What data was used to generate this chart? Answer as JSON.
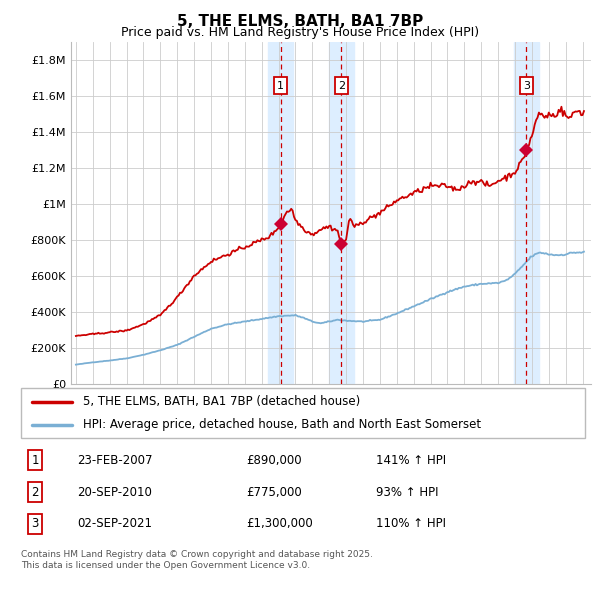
{
  "title": "5, THE ELMS, BATH, BA1 7BP",
  "subtitle": "Price paid vs. HM Land Registry's House Price Index (HPI)",
  "legend_line1": "5, THE ELMS, BATH, BA1 7BP (detached house)",
  "legend_line2": "HPI: Average price, detached house, Bath and North East Somerset",
  "footer1": "Contains HM Land Registry data © Crown copyright and database right 2025.",
  "footer2": "This data is licensed under the Open Government Licence v3.0.",
  "sales": [
    {
      "num": 1,
      "date": "23-FEB-2007",
      "price": "£890,000",
      "pct": "141% ↑ HPI"
    },
    {
      "num": 2,
      "date": "20-SEP-2010",
      "price": "£775,000",
      "pct": "93% ↑ HPI"
    },
    {
      "num": 3,
      "date": "02-SEP-2021",
      "price": "£1,300,000",
      "pct": "110% ↑ HPI"
    }
  ],
  "sale_dates_decimal": [
    2007.13,
    2010.72,
    2021.67
  ],
  "sale_prices": [
    890000,
    775000,
    1300000
  ],
  "hpi_color": "#7aafd4",
  "price_color": "#cc0000",
  "sale_marker_color": "#cc0033",
  "vline_color": "#cc0000",
  "shade_color": "#ddeeff",
  "ylim": [
    0,
    1900000
  ],
  "yticks": [
    0,
    200000,
    400000,
    600000,
    800000,
    1000000,
    1200000,
    1400000,
    1600000,
    1800000
  ],
  "ytick_labels": [
    "£0",
    "£200K",
    "£400K",
    "£600K",
    "£800K",
    "£1M",
    "£1.2M",
    "£1.4M",
    "£1.6M",
    "£1.8M"
  ],
  "xlim_start": 1994.7,
  "xlim_end": 2025.5,
  "xtick_years": [
    1995,
    1996,
    1997,
    1998,
    1999,
    2000,
    2001,
    2002,
    2003,
    2004,
    2005,
    2006,
    2007,
    2008,
    2009,
    2010,
    2011,
    2012,
    2013,
    2014,
    2015,
    2016,
    2017,
    2018,
    2019,
    2020,
    2021,
    2022,
    2023,
    2024,
    2025
  ],
  "hpi_anchors": [
    [
      1995.0,
      105000
    ],
    [
      1996.0,
      118000
    ],
    [
      1997.0,
      128000
    ],
    [
      1998.0,
      140000
    ],
    [
      1999.0,
      160000
    ],
    [
      2000.0,
      185000
    ],
    [
      2001.0,
      215000
    ],
    [
      2002.0,
      260000
    ],
    [
      2003.0,
      305000
    ],
    [
      2004.0,
      330000
    ],
    [
      2005.0,
      345000
    ],
    [
      2006.0,
      360000
    ],
    [
      2007.0,
      375000
    ],
    [
      2008.0,
      380000
    ],
    [
      2008.5,
      365000
    ],
    [
      2009.0,
      345000
    ],
    [
      2009.5,
      335000
    ],
    [
      2010.0,
      345000
    ],
    [
      2010.5,
      355000
    ],
    [
      2011.0,
      350000
    ],
    [
      2012.0,
      345000
    ],
    [
      2013.0,
      355000
    ],
    [
      2014.0,
      390000
    ],
    [
      2015.0,
      430000
    ],
    [
      2016.0,
      470000
    ],
    [
      2017.0,
      510000
    ],
    [
      2018.0,
      540000
    ],
    [
      2019.0,
      555000
    ],
    [
      2020.0,
      560000
    ],
    [
      2020.5,
      575000
    ],
    [
      2021.0,
      610000
    ],
    [
      2021.5,
      660000
    ],
    [
      2022.0,
      710000
    ],
    [
      2022.5,
      730000
    ],
    [
      2023.0,
      720000
    ],
    [
      2023.5,
      715000
    ],
    [
      2024.0,
      720000
    ],
    [
      2024.5,
      730000
    ],
    [
      2025.0,
      730000
    ]
  ],
  "price_anchors": [
    [
      1995.0,
      265000
    ],
    [
      1996.0,
      275000
    ],
    [
      1997.0,
      285000
    ],
    [
      1998.0,
      295000
    ],
    [
      1999.0,
      330000
    ],
    [
      2000.0,
      380000
    ],
    [
      2001.0,
      480000
    ],
    [
      2002.0,
      600000
    ],
    [
      2003.0,
      680000
    ],
    [
      2004.0,
      720000
    ],
    [
      2005.0,
      760000
    ],
    [
      2006.0,
      800000
    ],
    [
      2006.5,
      820000
    ],
    [
      2007.0,
      870000
    ],
    [
      2007.13,
      890000
    ],
    [
      2007.5,
      960000
    ],
    [
      2007.8,
      970000
    ],
    [
      2008.0,
      910000
    ],
    [
      2008.5,
      860000
    ],
    [
      2009.0,
      830000
    ],
    [
      2009.5,
      860000
    ],
    [
      2010.0,
      875000
    ],
    [
      2010.5,
      850000
    ],
    [
      2010.72,
      775000
    ],
    [
      2011.0,
      800000
    ],
    [
      2011.2,
      930000
    ],
    [
      2011.5,
      870000
    ],
    [
      2012.0,
      900000
    ],
    [
      2013.0,
      950000
    ],
    [
      2014.0,
      1020000
    ],
    [
      2015.0,
      1060000
    ],
    [
      2016.0,
      1100000
    ],
    [
      2017.0,
      1100000
    ],
    [
      2017.5,
      1080000
    ],
    [
      2018.0,
      1100000
    ],
    [
      2018.5,
      1130000
    ],
    [
      2019.0,
      1120000
    ],
    [
      2019.5,
      1100000
    ],
    [
      2020.0,
      1130000
    ],
    [
      2020.5,
      1150000
    ],
    [
      2021.0,
      1180000
    ],
    [
      2021.5,
      1250000
    ],
    [
      2021.67,
      1300000
    ],
    [
      2022.0,
      1380000
    ],
    [
      2022.3,
      1480000
    ],
    [
      2022.5,
      1510000
    ],
    [
      2022.7,
      1480000
    ],
    [
      2023.0,
      1500000
    ],
    [
      2023.3,
      1490000
    ],
    [
      2023.5,
      1510000
    ],
    [
      2023.7,
      1530000
    ],
    [
      2024.0,
      1490000
    ],
    [
      2024.3,
      1480000
    ],
    [
      2024.5,
      1510000
    ],
    [
      2024.7,
      1520000
    ],
    [
      2025.0,
      1510000
    ]
  ]
}
